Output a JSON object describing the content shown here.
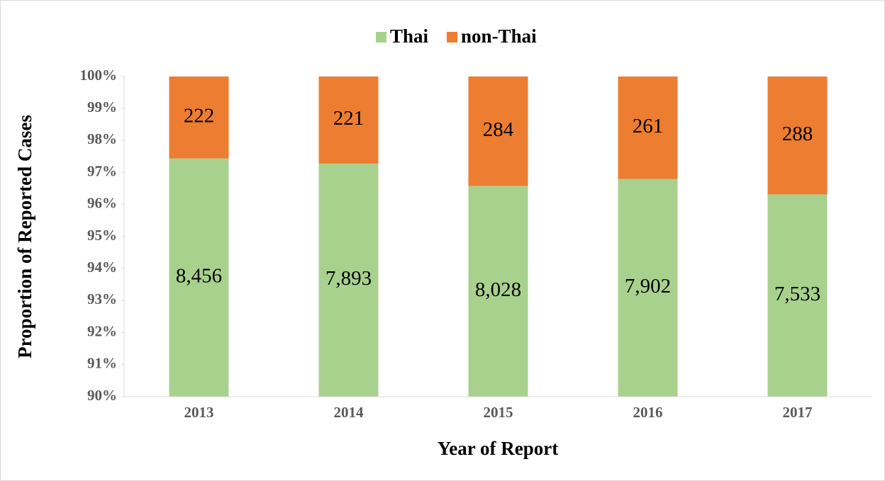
{
  "chart_data": {
    "type": "bar",
    "stacking": "percent",
    "xlabel": "Year of Report",
    "ylabel": "Proportion of Reported Cases",
    "categories": [
      "2013",
      "2014",
      "2015",
      "2016",
      "2017"
    ],
    "series": [
      {
        "name": "Thai",
        "color": "#a9d18e",
        "values": [
          8456,
          7893,
          8028,
          7902,
          7533
        ],
        "value_labels": [
          "8,456",
          "7,893",
          "8,028",
          "7,902",
          "7,533"
        ]
      },
      {
        "name": "non-Thai",
        "color": "#ed7d31",
        "values": [
          222,
          221,
          284,
          261,
          288
        ]
      }
    ],
    "ylim": [
      90,
      100
    ],
    "yticks": [
      {
        "value": 90,
        "label": "90%"
      },
      {
        "value": 91,
        "label": "91%"
      },
      {
        "value": 92,
        "label": "92%"
      },
      {
        "value": 93,
        "label": "93%"
      },
      {
        "value": 94,
        "label": "94%"
      },
      {
        "value": 95,
        "label": "95%"
      },
      {
        "value": 96,
        "label": "96%"
      },
      {
        "value": 97,
        "label": "97%"
      },
      {
        "value": 98,
        "label": "98%"
      },
      {
        "value": 99,
        "label": "99%"
      },
      {
        "value": 100,
        "label": "100%"
      }
    ],
    "grid": false,
    "legend": "top"
  }
}
